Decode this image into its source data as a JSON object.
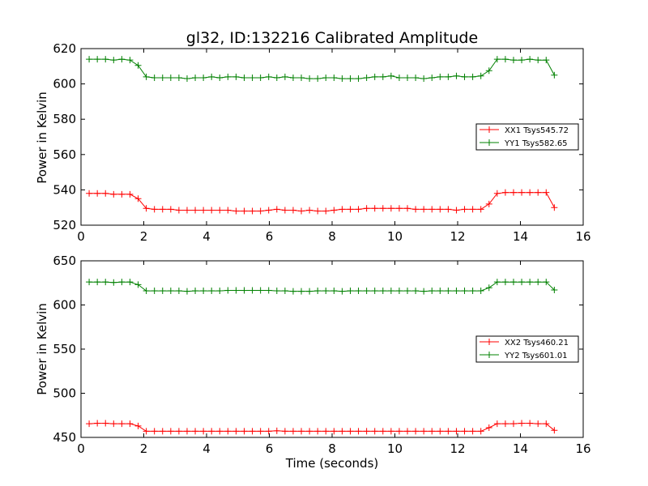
{
  "chart_data": [
    {
      "type": "line",
      "title": "gl32, ID:132216 Calibrated Amplitude",
      "xlabel": "",
      "ylabel": "Power in Kelvin",
      "xlim": [
        0,
        16
      ],
      "ylim": [
        520,
        620
      ],
      "xticks": [
        0,
        2,
        4,
        6,
        8,
        10,
        12,
        14,
        16
      ],
      "yticks": [
        520,
        540,
        560,
        580,
        600,
        620
      ],
      "grid": false,
      "legend_position": "right",
      "x": [
        0.26,
        0.52,
        0.78,
        1.04,
        1.3,
        1.56,
        1.82,
        2.08,
        2.34,
        2.6,
        2.86,
        3.12,
        3.38,
        3.64,
        3.9,
        4.16,
        4.42,
        4.68,
        4.94,
        5.2,
        5.46,
        5.72,
        5.98,
        6.24,
        6.5,
        6.76,
        7.02,
        7.28,
        7.54,
        7.8,
        8.06,
        8.32,
        8.58,
        8.84,
        9.1,
        9.36,
        9.62,
        9.88,
        10.14,
        10.4,
        10.66,
        10.92,
        11.18,
        11.44,
        11.7,
        11.96,
        12.22,
        12.48,
        12.74,
        13.0,
        13.26,
        13.52,
        13.78,
        14.04,
        14.3,
        14.56,
        14.82,
        15.08
      ],
      "series": [
        {
          "name": "XX1 Tsys545.72",
          "color": "#ff0000",
          "values": [
            538,
            538,
            538,
            537.5,
            537.5,
            537.5,
            535,
            529.5,
            529,
            529,
            529,
            528.5,
            528.5,
            528.5,
            528.5,
            528.5,
            528.5,
            528.5,
            528,
            528,
            528,
            528,
            528.5,
            529,
            528.5,
            528.5,
            528,
            528.5,
            528,
            528,
            528.5,
            529,
            529,
            529,
            529.5,
            529.5,
            529.5,
            529.5,
            529.5,
            529.5,
            529,
            529,
            529,
            529,
            529,
            528.5,
            529,
            529,
            529,
            532,
            538,
            538.5,
            538.5,
            538.5,
            538.5,
            538.5,
            538.5,
            530
          ]
        },
        {
          "name": "YY1 Tsys582.65",
          "color": "#008000",
          "values": [
            614,
            614,
            614,
            613.5,
            614,
            613.5,
            610.5,
            604,
            603.5,
            603.5,
            603.5,
            603.5,
            603,
            603.5,
            603.5,
            604,
            603.5,
            604,
            604,
            603.5,
            603.5,
            603.5,
            604,
            603.5,
            604,
            603.5,
            603.5,
            603,
            603,
            603.5,
            603.5,
            603,
            603,
            603,
            603.5,
            604,
            604,
            604.5,
            603.5,
            603.5,
            603.5,
            603,
            603.5,
            604,
            604,
            604.5,
            604,
            604,
            604.5,
            607.5,
            614,
            614,
            613.5,
            613.5,
            614,
            613.5,
            613.5,
            605
          ]
        }
      ]
    },
    {
      "type": "line",
      "title": "",
      "xlabel": "Time (seconds)",
      "ylabel": "Power in Kelvin",
      "xlim": [
        0,
        16
      ],
      "ylim": [
        450,
        650
      ],
      "xticks": [
        0,
        2,
        4,
        6,
        8,
        10,
        12,
        14,
        16
      ],
      "yticks": [
        450,
        500,
        550,
        600,
        650
      ],
      "grid": false,
      "legend_position": "right",
      "x": [
        0.26,
        0.52,
        0.78,
        1.04,
        1.3,
        1.56,
        1.82,
        2.08,
        2.34,
        2.6,
        2.86,
        3.12,
        3.38,
        3.64,
        3.9,
        4.16,
        4.42,
        4.68,
        4.94,
        5.2,
        5.46,
        5.72,
        5.98,
        6.24,
        6.5,
        6.76,
        7.02,
        7.28,
        7.54,
        7.8,
        8.06,
        8.32,
        8.58,
        8.84,
        9.1,
        9.36,
        9.62,
        9.88,
        10.14,
        10.4,
        10.66,
        10.92,
        11.18,
        11.44,
        11.7,
        11.96,
        12.22,
        12.48,
        12.74,
        13.0,
        13.26,
        13.52,
        13.78,
        14.04,
        14.3,
        14.56,
        14.82,
        15.08
      ],
      "series": [
        {
          "name": "XX2 Tsys460.21",
          "color": "#ff0000",
          "values": [
            465.5,
            466,
            466,
            465.5,
            465.5,
            465.5,
            463,
            457,
            457,
            457,
            457,
            457,
            457,
            457,
            457,
            457,
            457,
            457,
            457,
            457,
            457,
            457,
            457,
            457.5,
            457,
            457,
            457,
            457,
            457,
            457,
            457,
            457,
            457,
            457,
            457,
            457,
            457,
            457,
            457,
            457,
            457,
            457,
            457,
            457,
            457,
            457,
            457,
            457,
            457,
            461,
            465.5,
            465.5,
            465.5,
            466,
            466,
            465.5,
            465.5,
            458
          ]
        },
        {
          "name": "YY2 Tsys601.01",
          "color": "#008000",
          "values": [
            626,
            626,
            626,
            625.5,
            626,
            626,
            623,
            616,
            616,
            616,
            616,
            616,
            615.5,
            616,
            616,
            616,
            616,
            616.5,
            616.5,
            616.5,
            616.5,
            616.5,
            616.5,
            616,
            616,
            615.5,
            615.5,
            615.5,
            616,
            616,
            616,
            615.5,
            616,
            616,
            616,
            616,
            616,
            616,
            616,
            616,
            616,
            615.5,
            616,
            616,
            616,
            616,
            616,
            616,
            616,
            619.5,
            626,
            626,
            626,
            626,
            626,
            626,
            626,
            617
          ]
        }
      ]
    }
  ]
}
